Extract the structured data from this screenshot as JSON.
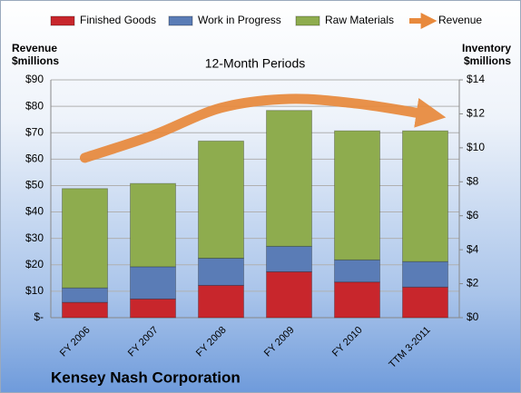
{
  "chart_data": {
    "type": "stacked-bar-line",
    "subtitle": "12-Month Periods",
    "y_label": "Revenue\n$millions",
    "y2_label": "Inventory\n$millions",
    "company": "Kensey Nash Corporation",
    "categories": [
      "FY 2006",
      "FY 2007",
      "FY 2008",
      "FY 2009",
      "FY 2010",
      "TTM 3-2011"
    ],
    "series": [
      {
        "name": "Finished Goods",
        "color": "#c8262c",
        "axis": "y2",
        "values": [
          0.9,
          1.1,
          1.9,
          2.7,
          2.1,
          1.8
        ]
      },
      {
        "name": "Work in Progress",
        "color": "#5a7cb6",
        "axis": "y2",
        "values": [
          0.85,
          1.9,
          1.6,
          1.5,
          1.3,
          1.5
        ]
      },
      {
        "name": "Raw Materials",
        "color": "#8eac4e",
        "axis": "y2",
        "values": [
          5.85,
          4.9,
          6.9,
          8.0,
          7.6,
          7.7
        ]
      },
      {
        "name": "Revenue",
        "color": "#e8893c",
        "values": [
          60.5,
          69,
          79.4,
          82.8,
          81,
          77
        ]
      }
    ],
    "ylim": [
      0,
      90
    ],
    "yticks": [
      {
        "value": 0,
        "label": "$-"
      },
      {
        "value": 10,
        "label": "$10"
      },
      {
        "value": 20,
        "label": "$20"
      },
      {
        "value": 30,
        "label": "$30"
      },
      {
        "value": 40,
        "label": "$40"
      },
      {
        "value": 50,
        "label": "$50"
      },
      {
        "value": 60,
        "label": "$60"
      },
      {
        "value": 70,
        "label": "$70"
      },
      {
        "value": 80,
        "label": "$80"
      },
      {
        "value": 90,
        "label": "$90"
      }
    ],
    "y2lim": [
      0,
      14
    ],
    "y2ticks": [
      {
        "value": 0,
        "label": "$0"
      },
      {
        "value": 2,
        "label": "$2"
      },
      {
        "value": 4,
        "label": "$4"
      },
      {
        "value": 6,
        "label": "$6"
      },
      {
        "value": 8,
        "label": "$8"
      },
      {
        "value": 10,
        "label": "$10"
      },
      {
        "value": 12,
        "label": "$12"
      },
      {
        "value": 14,
        "label": "$14"
      }
    ],
    "grid": true
  }
}
